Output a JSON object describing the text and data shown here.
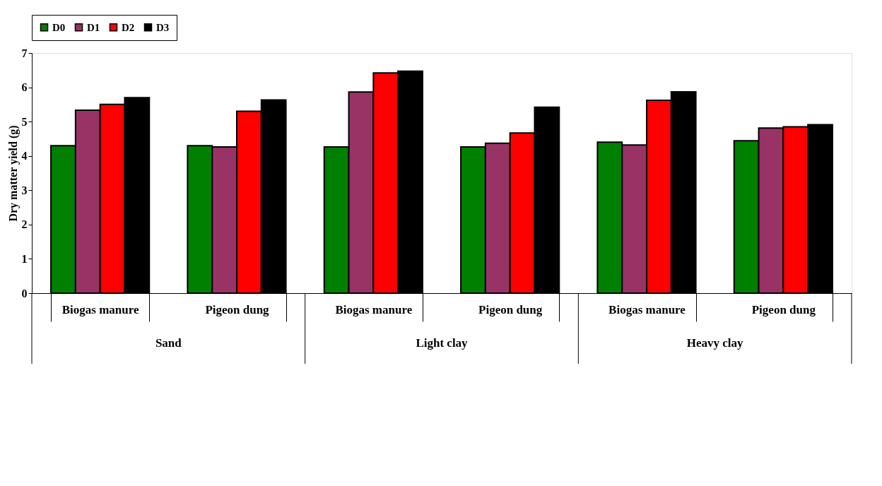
{
  "chart_data": {
    "type": "bar",
    "ylabel": "Dry matter yield (g)",
    "categories": [
      "Biogas manure",
      "Pigeon dung",
      "Biogas manure",
      "Pigeon dung",
      "Biogas manure",
      "Pigeon dung"
    ],
    "series": [
      {
        "name": "D0",
        "color": "#008000",
        "values": [
          4.3,
          4.3,
          4.26,
          4.26,
          4.4,
          4.44
        ]
      },
      {
        "name": "D1",
        "color": "#993366",
        "values": [
          5.33,
          4.26,
          5.86,
          4.37,
          4.32,
          4.81
        ]
      },
      {
        "name": "D2",
        "color": "#ff0000",
        "values": [
          5.5,
          5.3,
          6.42,
          4.67,
          5.62,
          4.85
        ]
      },
      {
        "name": "D3",
        "color": "#000000",
        "values": [
          5.7,
          5.63,
          6.47,
          5.42,
          5.87,
          4.91
        ]
      }
    ],
    "annotations": [
      "Sand",
      "Light clay",
      "Heavy clay"
    ],
    "ylim": [
      0,
      7
    ],
    "yticks": [
      0,
      1,
      2,
      3,
      4,
      5,
      6,
      7
    ],
    "grid": false,
    "legend": "top"
  }
}
